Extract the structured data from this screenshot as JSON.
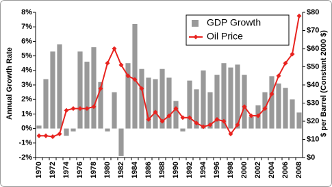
{
  "chart_data": {
    "type": "combo",
    "y_label": "Annual Growth Rate",
    "y2_label": "$ per Barrel (Constant 2000 $)",
    "categories": [
      "1970",
      null,
      "1972",
      null,
      "1974",
      null,
      "1976",
      null,
      "1978",
      null,
      "1980",
      null,
      "1982",
      null,
      "1984",
      null,
      "1986",
      null,
      "1988",
      null,
      "1990",
      null,
      "1992",
      null,
      "1994",
      null,
      "1996",
      null,
      "1998",
      null,
      "2000",
      null,
      "2002",
      null,
      "2004",
      null,
      "2006",
      null,
      "2008"
    ],
    "series": [
      {
        "name": "GDP Growth",
        "type": "bar",
        "color": "#999999",
        "values": [
          0.2,
          3.4,
          5.3,
          5.8,
          -0.5,
          -0.2,
          5.3,
          4.6,
          5.6,
          3.2,
          -0.2,
          2.5,
          -1.9,
          4.5,
          7.2,
          4.1,
          3.5,
          3.4,
          4.1,
          3.5,
          1.9,
          -0.2,
          3.3,
          2.7,
          4.0,
          2.5,
          3.7,
          4.5,
          4.2,
          4.4,
          3.7,
          0.8,
          1.6,
          2.5,
          3.6,
          3.1,
          2.8,
          2.0,
          1.1
        ]
      },
      {
        "name": "Oil Price",
        "type": "line",
        "axis": "y2",
        "color": "#e8231f",
        "values": [
          12,
          12,
          11.5,
          13,
          26,
          27,
          27,
          27,
          28,
          38,
          52,
          60,
          51,
          45,
          43,
          38,
          21,
          25,
          20,
          23,
          27,
          22,
          22,
          19,
          17,
          18,
          21,
          20,
          13,
          18,
          28,
          23,
          23,
          27,
          35,
          45,
          52,
          57,
          78
        ]
      }
    ],
    "ylim": [
      -2,
      8
    ],
    "yticks": [
      {
        "value": -2,
        "label": "-2%"
      },
      {
        "value": -1,
        "label": "-1%"
      },
      {
        "value": 0,
        "label": "0%"
      },
      {
        "value": 1,
        "label": "1%"
      },
      {
        "value": 2,
        "label": "2%"
      },
      {
        "value": 3,
        "label": "3%"
      },
      {
        "value": 4,
        "label": "4%"
      },
      {
        "value": 5,
        "label": "5%"
      },
      {
        "value": 6,
        "label": "6%"
      },
      {
        "value": 7,
        "label": "7%"
      },
      {
        "value": 8,
        "label": "8%"
      }
    ],
    "y2lim": [
      0,
      80
    ],
    "y2ticks": [
      {
        "value": 0,
        "label": "$0"
      },
      {
        "value": 10,
        "label": "$10"
      },
      {
        "value": 20,
        "label": "$20"
      },
      {
        "value": 30,
        "label": "$30"
      },
      {
        "value": 40,
        "label": "$40"
      },
      {
        "value": 50,
        "label": "$50"
      },
      {
        "value": 60,
        "label": "$60"
      },
      {
        "value": 70,
        "label": "$70"
      },
      {
        "value": 80,
        "label": "$80"
      }
    ],
    "legend": "top-right",
    "grid": false
  }
}
